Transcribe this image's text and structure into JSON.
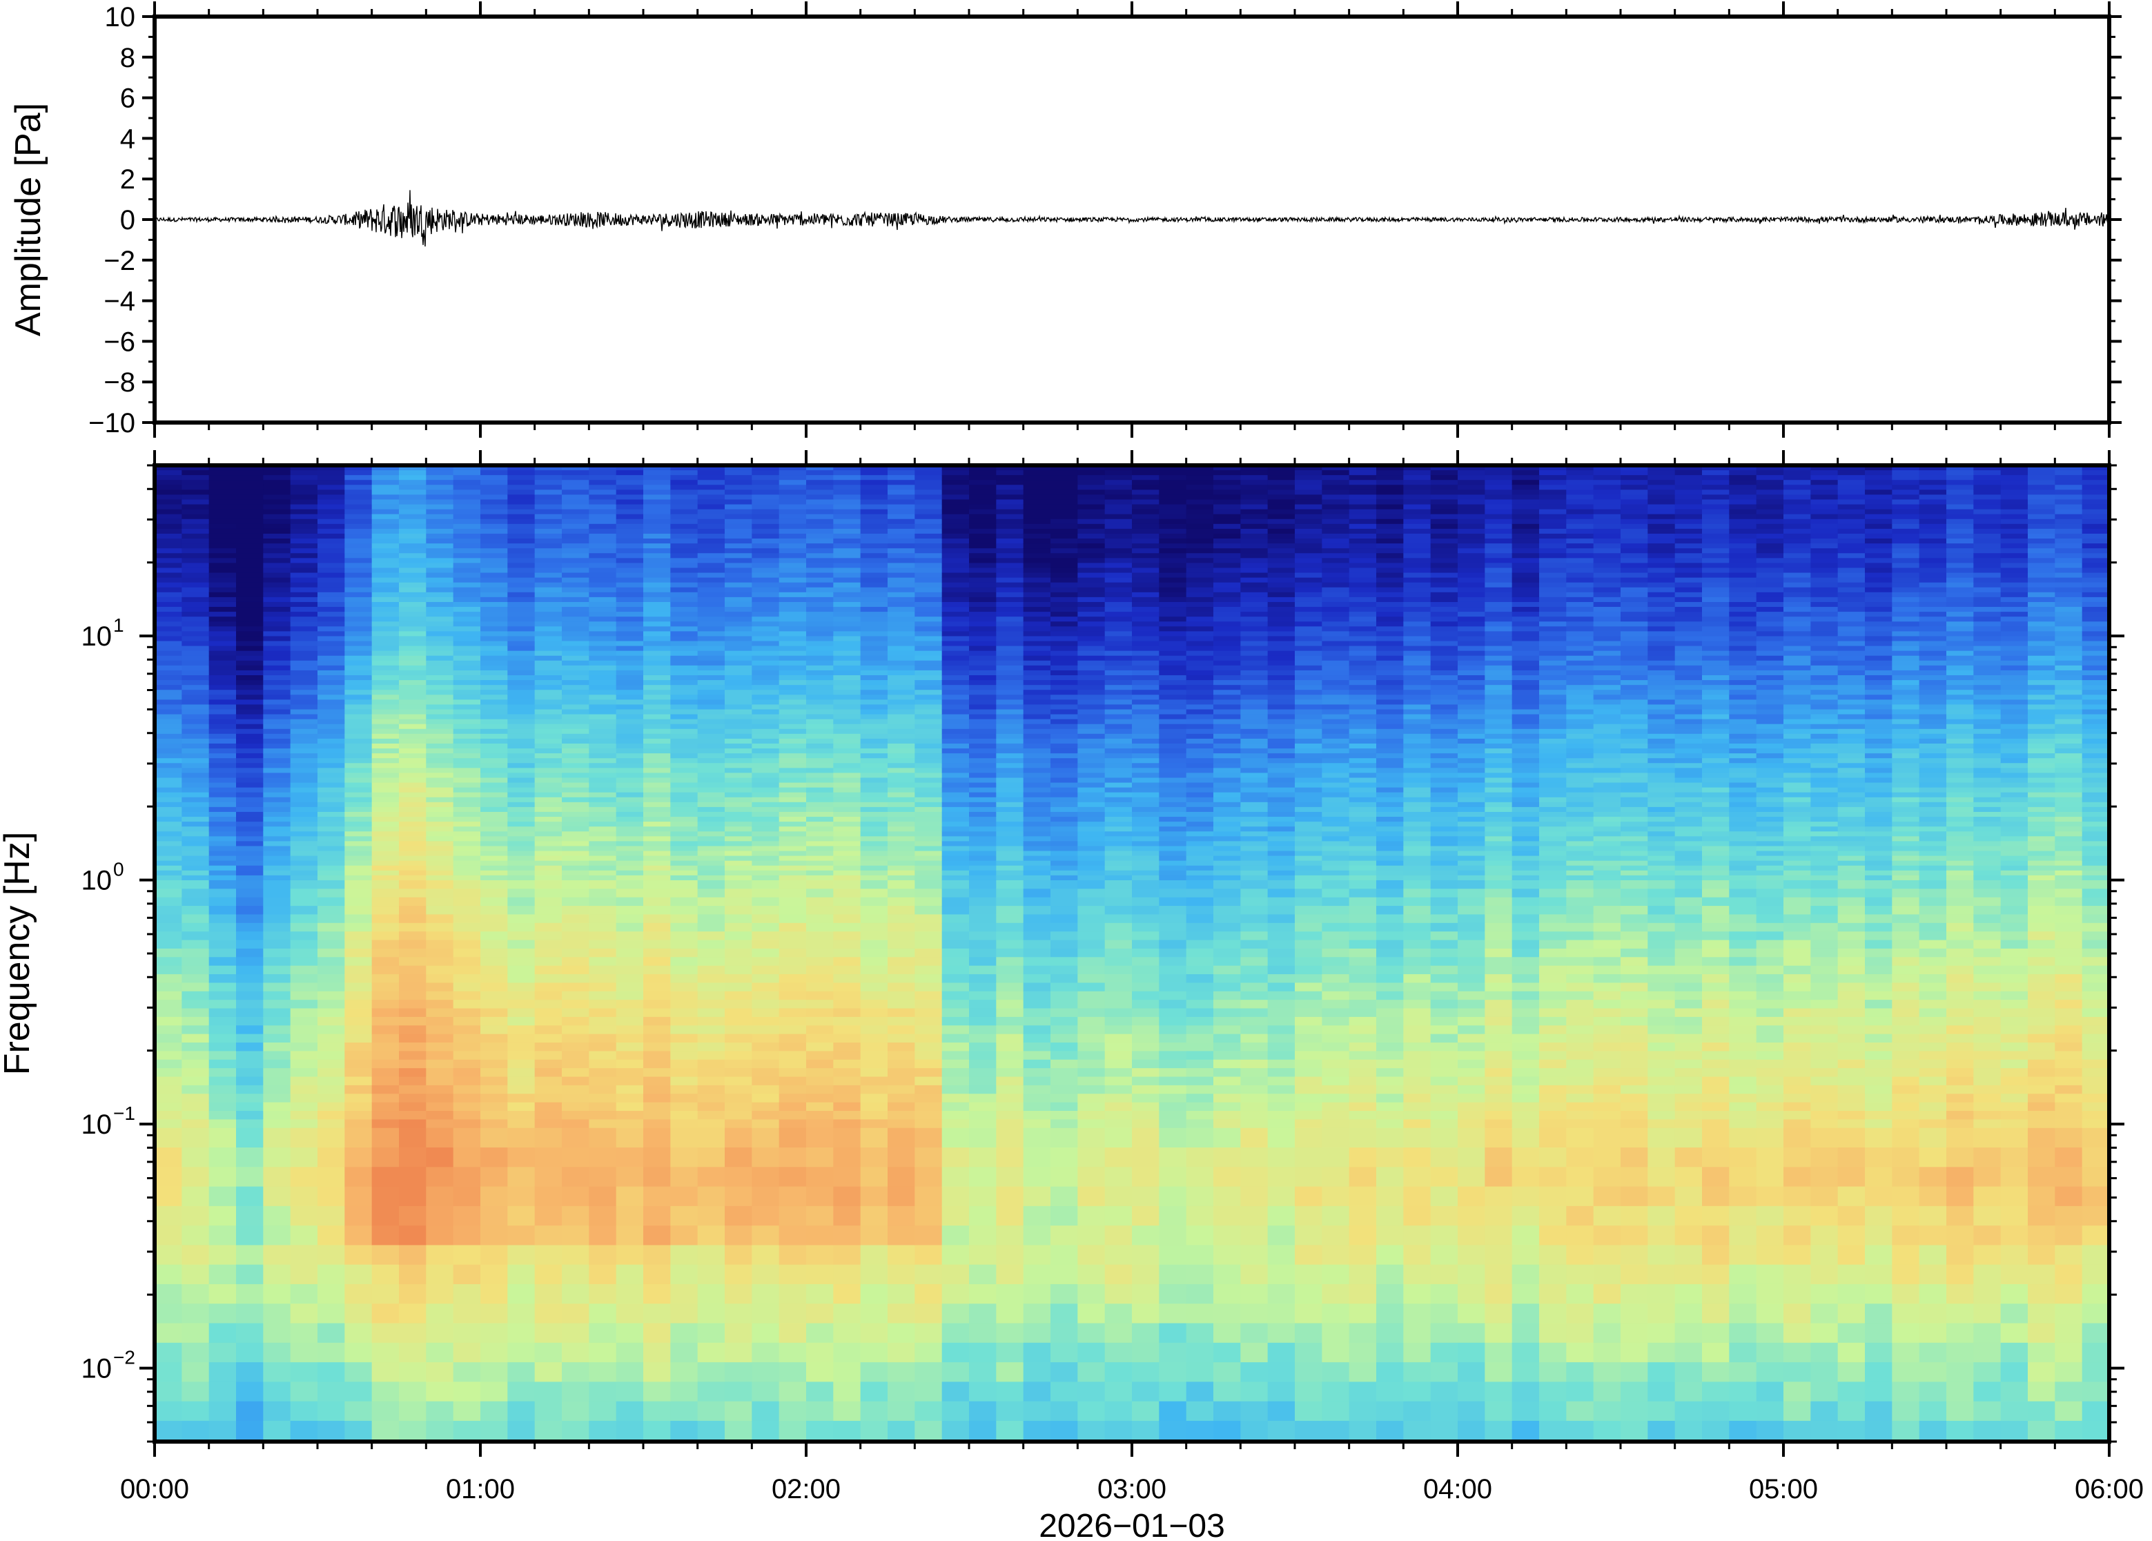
{
  "chart_data": [
    {
      "type": "line",
      "panel": "waveform",
      "ylabel": "Amplitude [Pa]",
      "ylim": [
        -10,
        10
      ],
      "yticks": [
        10,
        8,
        6,
        4,
        2,
        0,
        -2,
        -4,
        -6,
        -8,
        -10
      ],
      "ytick_labels": [
        "10",
        "8",
        "6",
        "4",
        "2",
        "0",
        "−2",
        "−4",
        "−6",
        "−8",
        "−10"
      ],
      "xlim_hours": [
        0,
        6
      ],
      "envelope": {
        "x_hours": [
          0.0,
          0.25,
          0.5,
          0.6,
          0.7,
          0.8,
          0.9,
          1.0,
          1.2,
          1.35,
          1.5,
          1.65,
          1.8,
          2.0,
          2.2,
          2.35,
          2.45,
          3.0,
          4.0,
          5.0,
          5.6,
          5.7,
          5.8,
          6.0
        ],
        "amplitude_pa": [
          0.1,
          0.1,
          0.15,
          0.3,
          0.8,
          1.0,
          0.5,
          0.3,
          0.25,
          0.4,
          0.25,
          0.45,
          0.3,
          0.3,
          0.35,
          0.3,
          0.12,
          0.1,
          0.1,
          0.12,
          0.15,
          0.3,
          0.35,
          0.35
        ]
      }
    },
    {
      "type": "heatmap",
      "panel": "spectrogram",
      "ylabel": "Frequency [Hz]",
      "yscale": "log",
      "ylim_hz": [
        0.005,
        50
      ],
      "yticks_hz": [
        0.01,
        0.1,
        1,
        10
      ],
      "ytick_labels": [
        {
          "base": "10",
          "exp": "−2"
        },
        {
          "base": "10",
          "exp": "−1"
        },
        {
          "base": "10",
          "exp": "0"
        },
        {
          "base": "10",
          "exp": "1"
        }
      ],
      "xlim_hours": [
        0,
        6
      ],
      "colormap": [
        "#0f0a6e",
        "#1a2bc4",
        "#2f6fe8",
        "#3fb6f2",
        "#6fe0d6",
        "#c9f59a",
        "#f3e07a",
        "#f7b56a",
        "#f08a52"
      ],
      "relative_power_profile": {
        "log10_freq": [
          -2.3,
          -2.0,
          -1.5,
          -1.2,
          -0.9,
          -0.5,
          0.0,
          0.5,
          1.0,
          1.4,
          1.7
        ],
        "level_0_to_1": [
          0.45,
          0.55,
          0.72,
          0.78,
          0.7,
          0.62,
          0.5,
          0.38,
          0.22,
          0.12,
          0.08
        ]
      },
      "time_activity": {
        "x_hours": [
          0.0,
          0.2,
          0.3,
          0.45,
          0.6,
          0.75,
          0.85,
          1.0,
          1.3,
          1.7,
          2.0,
          2.35,
          2.45,
          3.0,
          3.5,
          4.0,
          5.0,
          5.7,
          6.0
        ],
        "boost": [
          0.0,
          -0.15,
          -0.2,
          -0.05,
          0.1,
          0.25,
          0.22,
          0.1,
          0.12,
          0.1,
          0.12,
          0.12,
          -0.08,
          -0.1,
          -0.05,
          -0.02,
          0.0,
          0.05,
          0.08
        ]
      }
    }
  ],
  "x_axis": {
    "tick_labels": [
      "00:00",
      "01:00",
      "02:00",
      "03:00",
      "04:00",
      "05:00",
      "06:00"
    ],
    "tick_hours": [
      0,
      1,
      2,
      3,
      4,
      5,
      6
    ],
    "date_label": "2026−01−03"
  }
}
